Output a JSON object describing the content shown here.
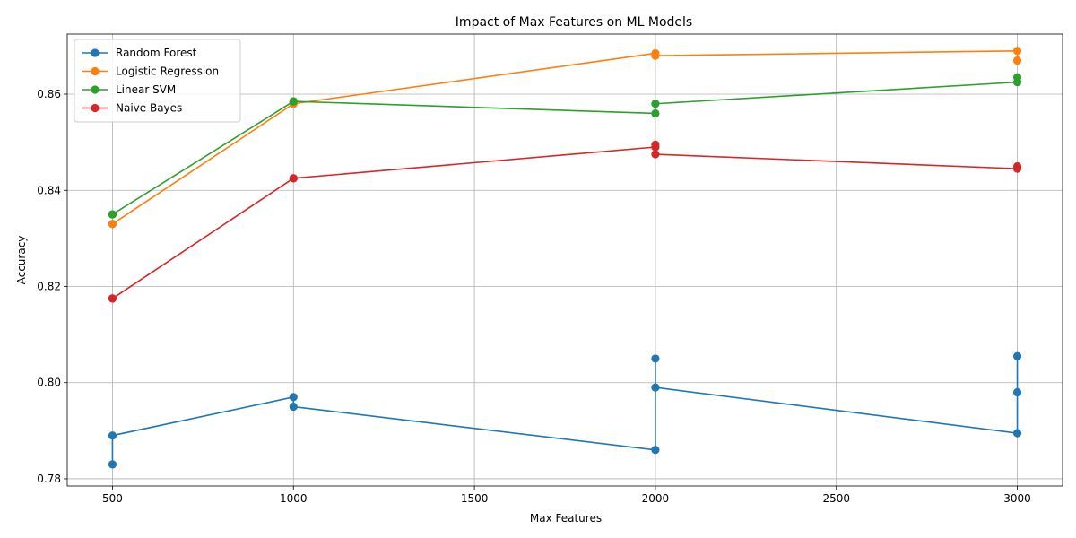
{
  "chart_data": {
    "type": "line",
    "title": "Impact of Max Features on ML Models",
    "xlabel": "Max Features",
    "ylabel": "Accuracy",
    "xlim": [
      375,
      3125
    ],
    "ylim": [
      0.7785,
      0.8725
    ],
    "xticks": [
      500,
      1000,
      1500,
      2000,
      2500,
      3000
    ],
    "yticks": [
      0.78,
      0.8,
      0.82,
      0.84,
      0.86
    ],
    "grid": true,
    "legend_position": "top-left",
    "series": [
      {
        "name": "Random Forest",
        "color": "#1f77b4",
        "points": [
          [
            500,
            0.783
          ],
          [
            500,
            0.789
          ],
          [
            1000,
            0.797
          ],
          [
            1000,
            0.795
          ],
          [
            2000,
            0.786
          ],
          [
            2000,
            0.805
          ],
          [
            2000,
            0.799
          ],
          [
            3000,
            0.7895
          ],
          [
            3000,
            0.8055
          ],
          [
            3000,
            0.798
          ]
        ]
      },
      {
        "name": "Logistic Regression",
        "color": "#ff7f0e",
        "points": [
          [
            500,
            0.833
          ],
          [
            500,
            0.833
          ],
          [
            1000,
            0.858
          ],
          [
            1000,
            0.858
          ],
          [
            2000,
            0.8685
          ],
          [
            2000,
            0.868
          ],
          [
            3000,
            0.869
          ],
          [
            3000,
            0.867
          ]
        ]
      },
      {
        "name": "Linear SVM",
        "color": "#2ca02c",
        "points": [
          [
            500,
            0.835
          ],
          [
            500,
            0.835
          ],
          [
            1000,
            0.8585
          ],
          [
            1000,
            0.8585
          ],
          [
            2000,
            0.856
          ],
          [
            2000,
            0.858
          ],
          [
            3000,
            0.8625
          ],
          [
            3000,
            0.8635
          ]
        ]
      },
      {
        "name": "Naive Bayes",
        "color": "#d62728",
        "points": [
          [
            500,
            0.8175
          ],
          [
            500,
            0.8175
          ],
          [
            1000,
            0.8425
          ],
          [
            1000,
            0.8425
          ],
          [
            2000,
            0.849
          ],
          [
            2000,
            0.8495
          ],
          [
            2000,
            0.8475
          ],
          [
            3000,
            0.8445
          ],
          [
            3000,
            0.845
          ]
        ]
      }
    ]
  }
}
